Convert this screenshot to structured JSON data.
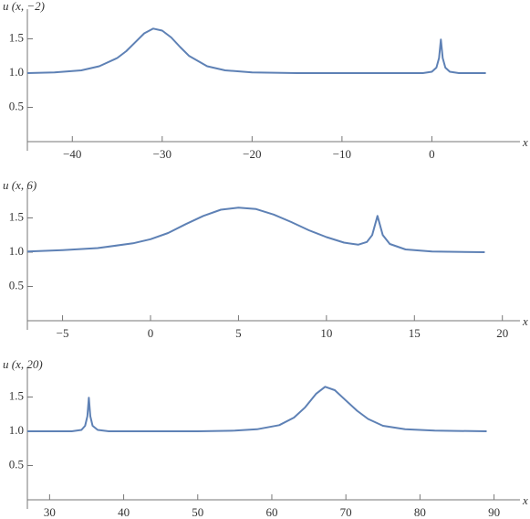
{
  "chart_data": [
    {
      "type": "line",
      "y_label": "u (x, −2)",
      "x_label": "x",
      "color": "#5e81b5",
      "x": [
        -45,
        -42,
        -39,
        -37,
        -35,
        -34,
        -33,
        -32,
        -31,
        -30,
        -29,
        -28,
        -27,
        -25,
        -23,
        -20,
        -15,
        -10,
        -5,
        -1,
        0,
        0.5,
        0.8,
        1,
        1.2,
        1.5,
        2,
        3,
        6
      ],
      "values": [
        1.0,
        1.01,
        1.04,
        1.1,
        1.22,
        1.32,
        1.45,
        1.58,
        1.65,
        1.62,
        1.52,
        1.38,
        1.25,
        1.1,
        1.04,
        1.01,
        1.0,
        1.0,
        1.0,
        1.0,
        1.02,
        1.08,
        1.22,
        1.49,
        1.22,
        1.08,
        1.02,
        1.0,
        1.0
      ],
      "xlim": [
        -45,
        9.8
      ],
      "ylim": [
        0,
        1.8
      ],
      "xticks": [
        {
          "value": -40,
          "label": "−40"
        },
        {
          "value": -30,
          "label": "−30"
        },
        {
          "value": -20,
          "label": "−20"
        },
        {
          "value": -10,
          "label": "−10"
        },
        0
      ],
      "yticks": [
        0.5,
        {
          "value": 1,
          "label": "1.0"
        },
        1.5
      ]
    },
    {
      "type": "line",
      "y_label": "u (x, 6)",
      "x_label": "x",
      "color": "#5e81b5",
      "x": [
        -7,
        -5,
        -3,
        -1,
        0,
        1,
        2,
        3,
        4,
        5,
        6,
        7,
        8,
        9,
        10,
        11,
        11.8,
        12.3,
        12.6,
        12.9,
        13.2,
        13.6,
        14.5,
        16,
        19
      ],
      "values": [
        1.01,
        1.03,
        1.06,
        1.13,
        1.19,
        1.28,
        1.41,
        1.53,
        1.62,
        1.65,
        1.63,
        1.55,
        1.44,
        1.32,
        1.22,
        1.14,
        1.11,
        1.15,
        1.25,
        1.53,
        1.25,
        1.12,
        1.04,
        1.01,
        1.0
      ],
      "xlim": [
        -7,
        21
      ],
      "ylim": [
        0,
        1.8
      ],
      "xticks": [
        {
          "value": -5,
          "label": "−5"
        },
        0,
        5,
        10,
        15,
        20
      ],
      "yticks": [
        0.5,
        {
          "value": 1,
          "label": "1.0"
        },
        1.5
      ]
    },
    {
      "type": "line",
      "y_label": "u (x, 20)",
      "x_label": "x",
      "color": "#5e81b5",
      "x": [
        27,
        33,
        34.3,
        34.8,
        35.1,
        35.3,
        35.5,
        35.8,
        36.5,
        38,
        50,
        55,
        58,
        61,
        63,
        64.5,
        66,
        67.2,
        68.5,
        70,
        71.5,
        73,
        75,
        78,
        82,
        89
      ],
      "values": [
        1.0,
        1.0,
        1.02,
        1.08,
        1.22,
        1.49,
        1.22,
        1.08,
        1.02,
        1.0,
        1.0,
        1.01,
        1.03,
        1.09,
        1.2,
        1.35,
        1.55,
        1.65,
        1.6,
        1.45,
        1.3,
        1.18,
        1.08,
        1.03,
        1.01,
        1.0
      ],
      "xlim": [
        27,
        93.5
      ],
      "ylim": [
        0,
        1.8
      ],
      "xticks": [
        30,
        40,
        50,
        60,
        70,
        80,
        90
      ],
      "yticks": [
        0.5,
        {
          "value": 1,
          "label": "1.0"
        },
        1.5
      ]
    }
  ]
}
